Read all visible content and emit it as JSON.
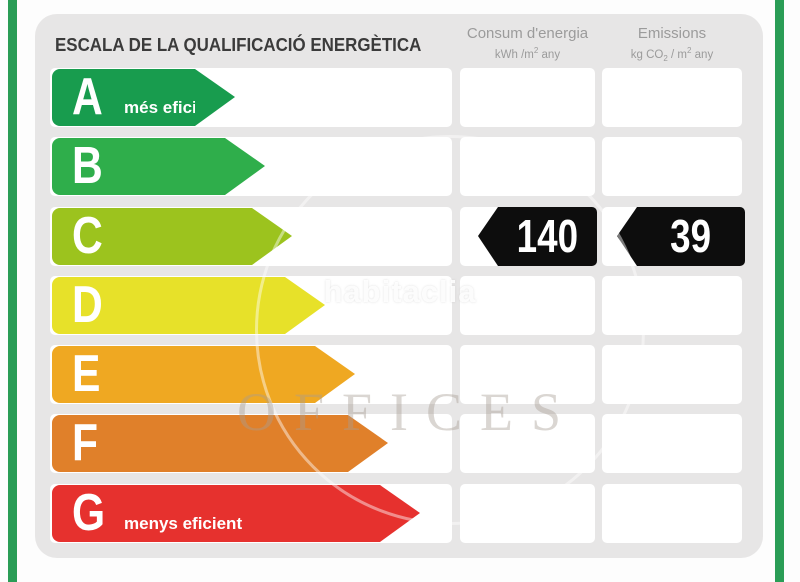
{
  "title": "ESCALA DE LA QUALIFICACIÓ ENERGÈTICA",
  "columns": {
    "consum": {
      "title": "Consum d'energia",
      "unit_p1": "kWh /m",
      "unit_sup": "2",
      "unit_p2": " any"
    },
    "emissions": {
      "title": "Emissions",
      "unit_p1": "kg CO",
      "unit_sub": "2",
      "unit_p2": " / m",
      "unit_sup": "2",
      "unit_p3": " any"
    }
  },
  "scale": {
    "rows": [
      {
        "grade": "A",
        "label": "més eficient",
        "color": "#189c4e"
      },
      {
        "grade": "B",
        "label": "",
        "color": "#2fae4b"
      },
      {
        "grade": "C",
        "label": "",
        "color": "#9cc31e"
      },
      {
        "grade": "D",
        "label": "",
        "color": "#e7e129"
      },
      {
        "grade": "E",
        "label": "",
        "color": "#efa822"
      },
      {
        "grade": "F",
        "label": "",
        "color": "#e0802a"
      },
      {
        "grade": "G",
        "label": "menys eficient",
        "color": "#e6312e"
      }
    ]
  },
  "values": {
    "rating_row": "C",
    "consum": "140",
    "emissions": "39",
    "arrow_bg": "#0d0d0d",
    "arrow_text": "#ffffff"
  },
  "watermarks": {
    "brand": "habitaclia",
    "overlay": "OFFICES"
  },
  "theme": {
    "accent_green": "#2a9d56",
    "panel_bg": "#e7e6e6",
    "title_color": "#3b3b3b",
    "header_color": "#9b9b9b"
  },
  "chart_data": {
    "type": "bar",
    "title": "ESCALA DE LA QUALIFICACIÓ ENERGÈTICA",
    "categories": [
      "A",
      "B",
      "C",
      "D",
      "E",
      "F",
      "G"
    ],
    "series": [
      {
        "name": "Consum d'energia (kWh/m2 any)",
        "values": [
          null,
          null,
          140,
          null,
          null,
          null,
          null
        ]
      },
      {
        "name": "Emissions (kg CO2/m2 any)",
        "values": [
          null,
          null,
          39,
          null,
          null,
          null,
          null
        ]
      }
    ],
    "annotations": [
      "A = més eficient",
      "G = menys eficient"
    ],
    "selected_rating": "C",
    "legend_position": "top",
    "bar_colors": [
      "#189c4e",
      "#2fae4b",
      "#9cc31e",
      "#e7e129",
      "#efa822",
      "#e0802a",
      "#e6312e"
    ]
  }
}
